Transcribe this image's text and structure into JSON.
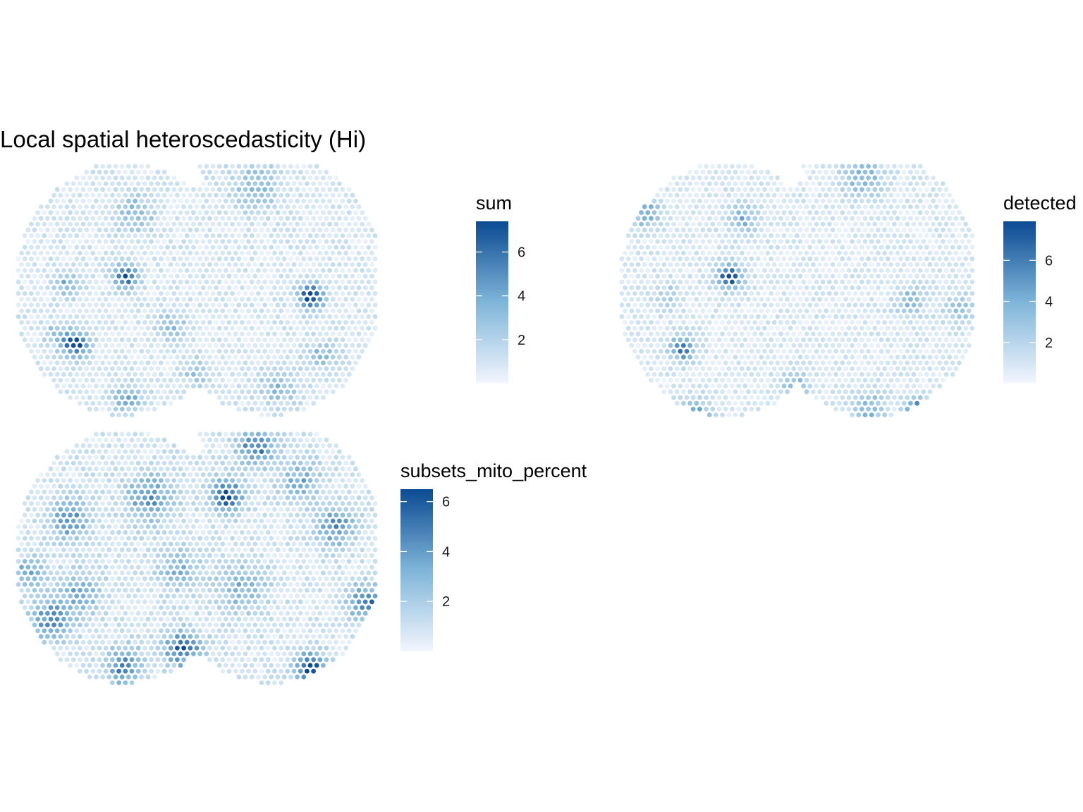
{
  "title": "Local spatial heteroscedasticity (Hi)",
  "colors": {
    "scale_low": "#f2f6fd",
    "scale_mid": "#7fb5d9",
    "scale_high": "#0b4a92",
    "background": "#ffffff"
  },
  "chart_data": [
    {
      "type": "heatmap",
      "description_kind": "spatial spot map",
      "legend_title": "sum",
      "legend_ticks": [
        "2",
        "4",
        "6"
      ],
      "legend_tick_values": [
        2,
        4,
        6
      ],
      "value_range": [
        0,
        7.4
      ],
      "hotspots": [
        {
          "u": 0.305,
          "v": 0.45,
          "peak": 6.2,
          "radius": 0.05
        },
        {
          "u": 0.81,
          "v": 0.53,
          "peak": 7.4,
          "radius": 0.05
        },
        {
          "u": 0.17,
          "v": 0.72,
          "peak": 7.0,
          "radius": 0.05
        },
        {
          "u": 0.31,
          "v": 0.93,
          "peak": 3.3,
          "radius": 0.06
        },
        {
          "u": 0.14,
          "v": 0.48,
          "peak": 2.8,
          "radius": 0.05
        },
        {
          "u": 0.33,
          "v": 0.2,
          "peak": 2.6,
          "radius": 0.08
        },
        {
          "u": 0.66,
          "v": 0.1,
          "peak": 2.4,
          "radius": 0.1
        },
        {
          "u": 0.43,
          "v": 0.65,
          "peak": 2.5,
          "radius": 0.06
        },
        {
          "u": 0.84,
          "v": 0.76,
          "peak": 2.6,
          "radius": 0.06
        },
        {
          "u": 0.72,
          "v": 0.88,
          "peak": 2.4,
          "radius": 0.08
        },
        {
          "u": 0.5,
          "v": 0.83,
          "peak": 2.2,
          "radius": 0.06
        },
        {
          "u": 0.12,
          "v": 0.68,
          "peak": 2.7,
          "radius": 0.05
        }
      ]
    },
    {
      "type": "heatmap",
      "description_kind": "spatial spot map",
      "legend_title": "detected",
      "legend_ticks": [
        "2",
        "4",
        "6"
      ],
      "legend_tick_values": [
        2,
        4,
        6
      ],
      "value_range": [
        0,
        7.9
      ],
      "hotspots": [
        {
          "u": 0.31,
          "v": 0.45,
          "peak": 7.2,
          "radius": 0.05
        },
        {
          "u": 0.18,
          "v": 0.73,
          "peak": 6.0,
          "radius": 0.05
        },
        {
          "u": 0.83,
          "v": 0.97,
          "peak": 7.9,
          "radius": 0.04
        },
        {
          "u": 0.21,
          "v": 0.99,
          "peak": 4.5,
          "radius": 0.06
        },
        {
          "u": 0.08,
          "v": 0.2,
          "peak": 3.6,
          "radius": 0.06
        },
        {
          "u": 0.35,
          "v": 0.22,
          "peak": 3.2,
          "radius": 0.06
        },
        {
          "u": 0.68,
          "v": 0.06,
          "peak": 3.3,
          "radius": 0.08
        },
        {
          "u": 0.81,
          "v": 0.55,
          "peak": 3.0,
          "radius": 0.06
        },
        {
          "u": 0.95,
          "v": 0.58,
          "peak": 2.8,
          "radius": 0.06
        },
        {
          "u": 0.49,
          "v": 0.88,
          "peak": 3.0,
          "radius": 0.06
        },
        {
          "u": 0.7,
          "v": 0.97,
          "peak": 3.2,
          "radius": 0.07
        },
        {
          "u": 0.14,
          "v": 0.53,
          "peak": 2.2,
          "radius": 0.05
        }
      ]
    },
    {
      "type": "heatmap",
      "description_kind": "spatial spot map",
      "legend_title": "subsets_mito_percent",
      "legend_ticks": [
        "2",
        "4",
        "6"
      ],
      "legend_tick_values": [
        2,
        4,
        6
      ],
      "value_range": [
        0,
        6.5
      ],
      "hotspots": [
        {
          "u": 0.58,
          "v": 0.26,
          "peak": 6.3,
          "radius": 0.06
        },
        {
          "u": 0.66,
          "v": 0.07,
          "peak": 4.5,
          "radius": 0.07
        },
        {
          "u": 0.81,
          "v": 0.94,
          "peak": 6.5,
          "radius": 0.06
        },
        {
          "u": 0.46,
          "v": 0.86,
          "peak": 5.2,
          "radius": 0.07
        },
        {
          "u": 0.3,
          "v": 0.93,
          "peak": 4.3,
          "radius": 0.07
        },
        {
          "u": 0.96,
          "v": 0.68,
          "peak": 4.6,
          "radius": 0.07
        },
        {
          "u": 0.88,
          "v": 0.38,
          "peak": 4.2,
          "radius": 0.07
        },
        {
          "u": 0.15,
          "v": 0.35,
          "peak": 3.8,
          "radius": 0.08
        },
        {
          "u": 0.37,
          "v": 0.27,
          "peak": 3.6,
          "radius": 0.09
        },
        {
          "u": 0.1,
          "v": 0.75,
          "peak": 3.8,
          "radius": 0.08
        },
        {
          "u": 0.04,
          "v": 0.56,
          "peak": 3.0,
          "radius": 0.06
        },
        {
          "u": 0.78,
          "v": 0.2,
          "peak": 3.0,
          "radius": 0.08
        },
        {
          "u": 0.62,
          "v": 0.62,
          "peak": 2.8,
          "radius": 0.09
        },
        {
          "u": 0.18,
          "v": 0.64,
          "peak": 3.0,
          "radius": 0.08
        },
        {
          "u": 0.45,
          "v": 0.55,
          "peak": 2.6,
          "radius": 0.08
        }
      ]
    }
  ]
}
